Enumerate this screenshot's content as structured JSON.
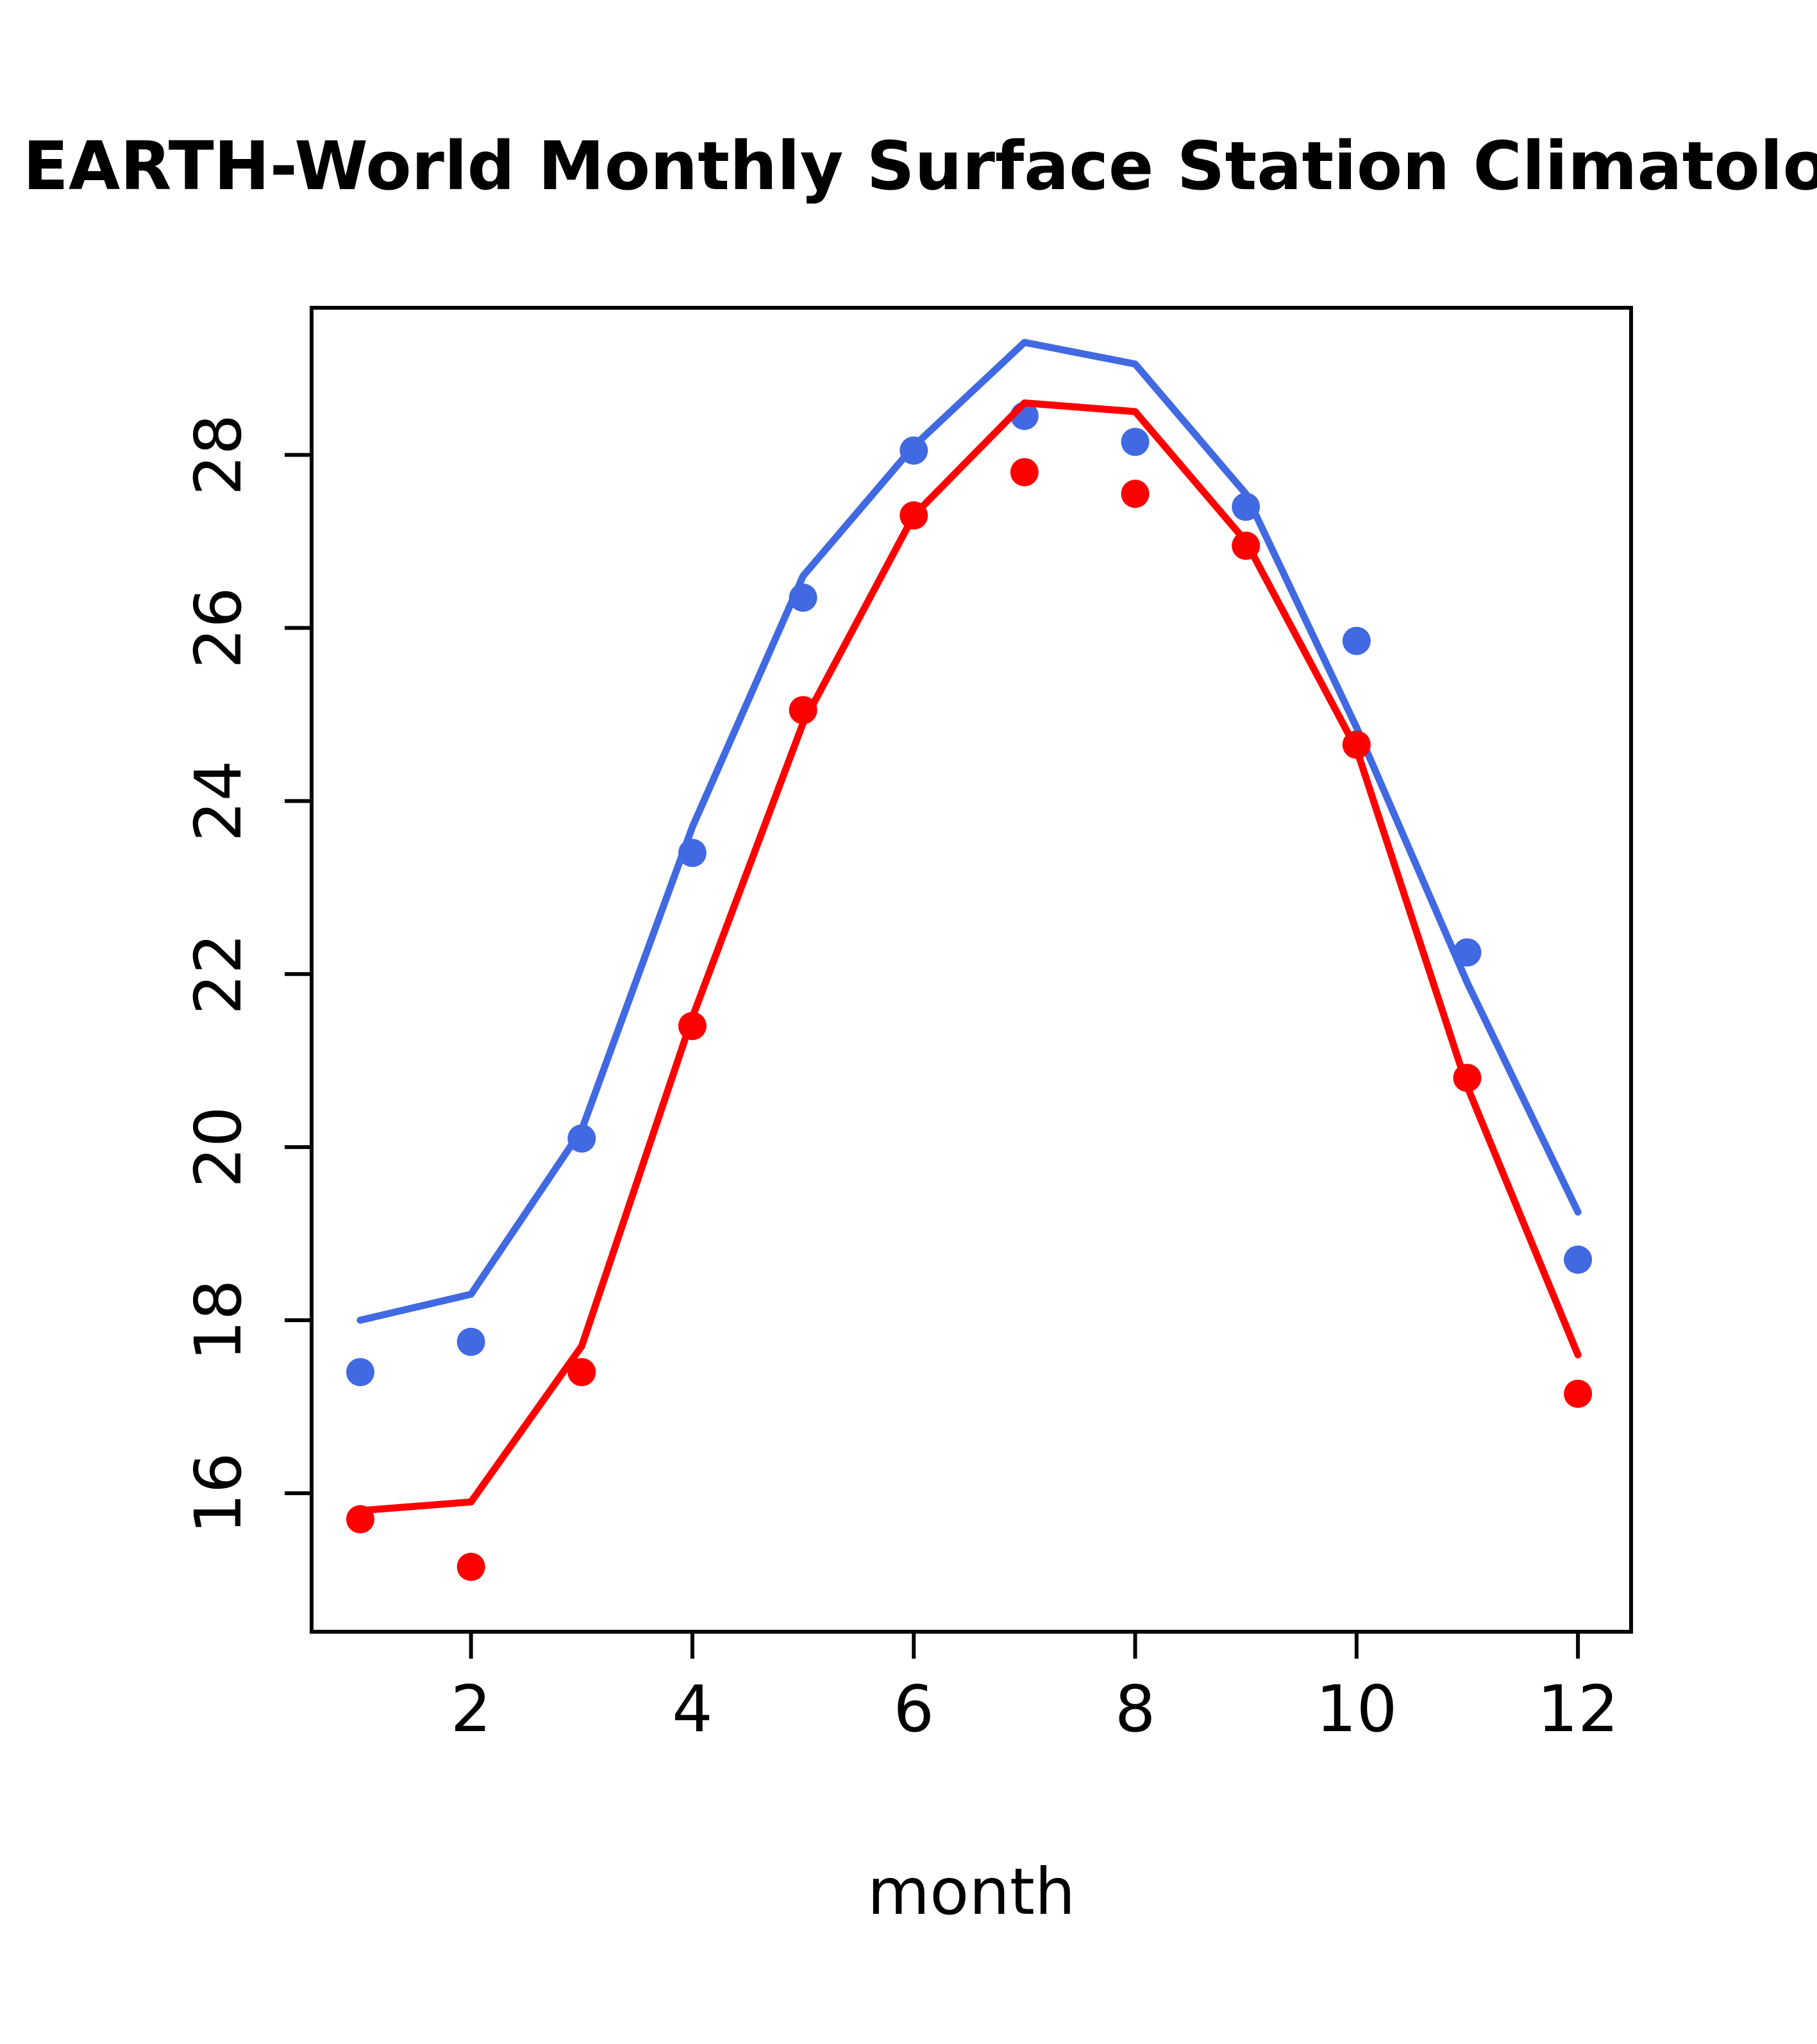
{
  "title": "EARTH-World Monthly Surface Station Climatology",
  "xlabel": "month",
  "chart_data": {
    "type": "line",
    "title": "EARTH-World Monthly Surface Station Climatology",
    "xlabel": "month",
    "ylabel": "",
    "x": [
      1,
      2,
      3,
      4,
      5,
      6,
      7,
      8,
      9,
      10,
      11,
      12
    ],
    "series": [
      {
        "name": "blue-line",
        "style": "line",
        "color": "#4169E1",
        "values": [
          18.0,
          18.3,
          20.2,
          23.7,
          26.6,
          28.1,
          29.3,
          29.05,
          27.55,
          24.85,
          21.9,
          19.25
        ]
      },
      {
        "name": "blue-points",
        "style": "points",
        "color": "#4169E1",
        "values": [
          17.4,
          17.75,
          20.1,
          23.4,
          26.35,
          28.05,
          28.45,
          28.15,
          27.4,
          25.85,
          22.25,
          18.7
        ]
      },
      {
        "name": "red-line",
        "style": "line",
        "color": "#FF0000",
        "values": [
          15.8,
          15.9,
          17.7,
          21.5,
          24.9,
          27.3,
          28.6,
          28.5,
          27.0,
          24.6,
          20.7,
          17.6
        ]
      },
      {
        "name": "red-points",
        "style": "points",
        "color": "#FF0000",
        "values": [
          15.7,
          15.15,
          17.4,
          21.4,
          25.05,
          27.3,
          27.8,
          27.55,
          26.95,
          24.65,
          20.8,
          17.15
        ]
      }
    ],
    "xlim": [
      0.56,
      12.48
    ],
    "ylim": [
      14.4,
      29.7
    ],
    "xticks": [
      2,
      4,
      6,
      8,
      10,
      12
    ],
    "yticks": [
      16,
      18,
      20,
      22,
      24,
      26,
      28
    ],
    "grid": false,
    "legend": "none",
    "colors": {
      "blue": "#4169E1",
      "red": "#FF0000",
      "axis": "#000000"
    }
  }
}
